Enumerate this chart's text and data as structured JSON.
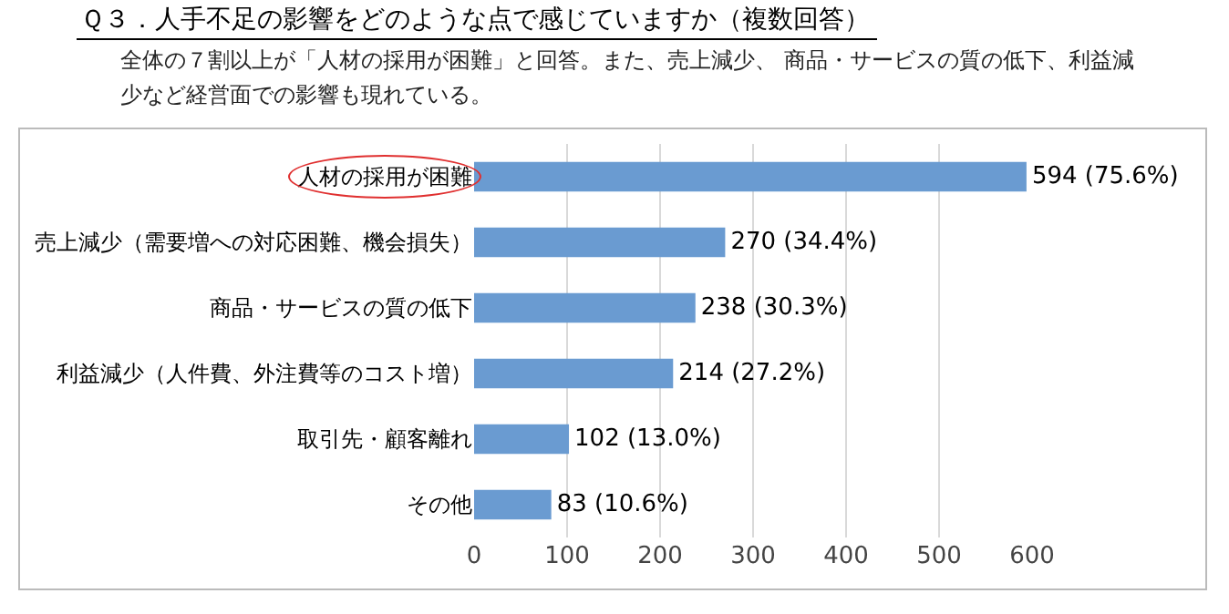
{
  "chart_data": {
    "type": "bar",
    "orientation": "horizontal",
    "title": "Ｑ３．人手不足の影響をどのような点で感じていますか（複数回答）",
    "subtitle": "全体の７割以上が「人材の採用が困難」と回答。また、売上減少、 商品・サービスの質の低下、利益減少など経営面での影響も現れている。",
    "categories": [
      "人材の採用が困難",
      "売上減少（需要増への対応困難、機会損失）",
      "商品・サービスの質の低下",
      "利益減少（人件費、外注費等のコスト増）",
      "取引先・顧客離れ",
      "その他"
    ],
    "values": [
      594,
      270,
      238,
      214,
      102,
      83
    ],
    "value_labels": [
      "594 (75.6%)",
      "270 (34.4%)",
      "238 (30.3%)",
      "214 (27.2%)",
      "102 (13.0%)",
      "83 (10.6%)"
    ],
    "color": "#6a9bd1",
    "xlim": [
      0,
      600
    ],
    "xticks": [
      0,
      100,
      200,
      300,
      400,
      500,
      600
    ],
    "grid": "x"
  }
}
